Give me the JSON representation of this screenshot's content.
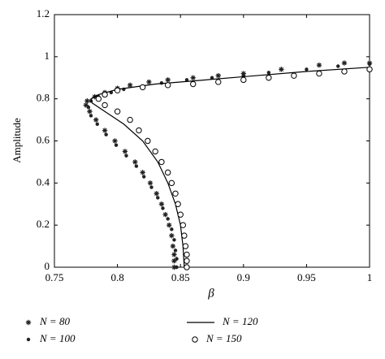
{
  "chart_data": {
    "type": "scatter",
    "x_label": "β",
    "y_label": "Amplitude",
    "xlim": [
      0.75,
      1
    ],
    "ylim": [
      0,
      1.2
    ],
    "xticks": [
      0.75,
      0.8,
      0.85,
      0.9,
      0.95,
      1
    ],
    "yticks": [
      0,
      0.2,
      0.4,
      0.6,
      0.8,
      1,
      1.2
    ],
    "series": [
      {
        "name": "N = 80",
        "marker": "asterisk",
        "color": "#222222",
        "x": [
          0.845,
          0.845,
          0.845,
          0.844,
          0.843,
          0.841,
          0.838,
          0.835,
          0.831,
          0.826,
          0.82,
          0.814,
          0.806,
          0.798,
          0.79,
          0.783,
          0.778,
          0.775,
          0.776,
          0.782,
          0.79,
          0.8,
          0.81,
          0.825,
          0.84,
          0.86,
          0.88,
          0.9,
          0.93,
          0.96,
          0.98,
          1
        ],
        "values": [
          0,
          0.03,
          0.06,
          0.1,
          0.15,
          0.2,
          0.25,
          0.3,
          0.35,
          0.4,
          0.45,
          0.5,
          0.55,
          0.6,
          0.65,
          0.7,
          0.74,
          0.77,
          0.79,
          0.81,
          0.83,
          0.85,
          0.865,
          0.88,
          0.89,
          0.9,
          0.91,
          0.92,
          0.94,
          0.96,
          0.97,
          0.97
        ]
      },
      {
        "name": "N = 100",
        "marker": "dot",
        "color": "#222222",
        "x": [
          0.847,
          0.847,
          0.846,
          0.845,
          0.843,
          0.84,
          0.836,
          0.832,
          0.827,
          0.821,
          0.815,
          0.807,
          0.799,
          0.791,
          0.784,
          0.779,
          0.777,
          0.779,
          0.785,
          0.795,
          0.805,
          0.82,
          0.835,
          0.855,
          0.875,
          0.9,
          0.92,
          0.95,
          0.975,
          1
        ],
        "values": [
          0,
          0.04,
          0.08,
          0.13,
          0.18,
          0.23,
          0.28,
          0.33,
          0.38,
          0.43,
          0.48,
          0.53,
          0.58,
          0.63,
          0.68,
          0.72,
          0.76,
          0.79,
          0.81,
          0.83,
          0.845,
          0.86,
          0.875,
          0.89,
          0.9,
          0.91,
          0.925,
          0.94,
          0.955,
          0.965
        ]
      },
      {
        "name": "N = 120",
        "marker": "line",
        "color": "#000000",
        "x": [
          0.853,
          0.852,
          0.85,
          0.846,
          0.84,
          0.832,
          0.82,
          0.805,
          0.79,
          0.78,
          0.779,
          0.785,
          0.8,
          0.83,
          0.87,
          0.9,
          0.95,
          1
        ],
        "values": [
          0,
          0.1,
          0.2,
          0.3,
          0.4,
          0.5,
          0.6,
          0.68,
          0.74,
          0.78,
          0.8,
          0.82,
          0.845,
          0.87,
          0.89,
          0.905,
          0.93,
          0.95
        ]
      },
      {
        "name": "N = 150",
        "marker": "circle",
        "color": "#000000",
        "x": [
          0.855,
          0.855,
          0.855,
          0.854,
          0.853,
          0.852,
          0.85,
          0.848,
          0.846,
          0.843,
          0.84,
          0.835,
          0.83,
          0.824,
          0.817,
          0.81,
          0.8,
          0.79,
          0.785,
          0.79,
          0.8,
          0.82,
          0.84,
          0.86,
          0.88,
          0.9,
          0.92,
          0.94,
          0.96,
          0.98,
          1
        ],
        "values": [
          0,
          0.03,
          0.06,
          0.1,
          0.15,
          0.2,
          0.25,
          0.3,
          0.35,
          0.4,
          0.45,
          0.5,
          0.55,
          0.6,
          0.65,
          0.7,
          0.74,
          0.77,
          0.8,
          0.82,
          0.84,
          0.855,
          0.865,
          0.87,
          0.88,
          0.89,
          0.9,
          0.91,
          0.92,
          0.93,
          0.94
        ]
      }
    ]
  }
}
